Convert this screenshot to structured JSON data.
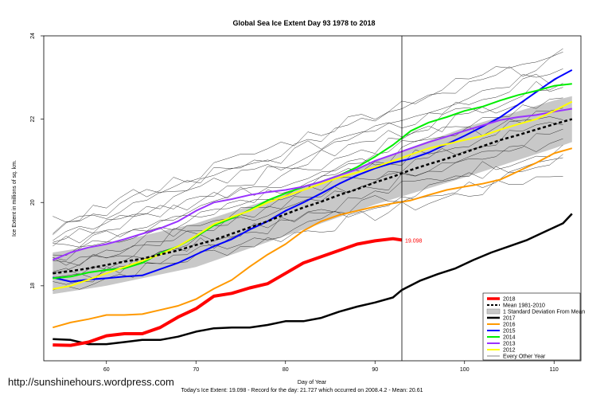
{
  "chart_data": {
    "type": "line",
    "title": "Global Sea Ice Extent Day 93 1978 to 2018",
    "xlabel": "Day of Year",
    "ylabel": "Ice Extent in millions of sq. km.",
    "xlim": [
      53,
      113
    ],
    "ylim": [
      16.2,
      24
    ],
    "x_ticks": [
      60,
      70,
      80,
      90,
      100,
      110
    ],
    "y_ticks": [
      18,
      20,
      22,
      24
    ],
    "current_day": 93,
    "grid": false,
    "legend_position": "bottom-right",
    "legend": [
      "2018",
      "Mean 1981-2010",
      "1 Standard Deviation From Mean",
      "2017",
      "2016",
      "2015",
      "2014",
      "2013",
      "2012",
      "Every Other Year"
    ],
    "annotation": "19.098",
    "series": [
      {
        "name": "2018",
        "color": "#ff0000",
        "x": [
          54,
          56,
          58,
          60,
          62,
          64,
          66,
          68,
          70,
          72,
          74,
          76,
          78,
          80,
          82,
          84,
          86,
          88,
          90,
          92,
          93
        ],
        "y": [
          16.58,
          16.57,
          16.65,
          16.8,
          16.85,
          16.85,
          17.0,
          17.25,
          17.45,
          17.75,
          17.82,
          17.95,
          18.05,
          18.3,
          18.55,
          18.7,
          18.85,
          19.0,
          19.08,
          19.13,
          19.098
        ]
      },
      {
        "name": "2017",
        "color": "#000000",
        "x": [
          54,
          56,
          58,
          60,
          62,
          64,
          66,
          68,
          70,
          72,
          74,
          76,
          78,
          80,
          82,
          84,
          86,
          88,
          90,
          92,
          93,
          95,
          97,
          99,
          101,
          103,
          105,
          107,
          109,
          111,
          112
        ],
        "y": [
          16.72,
          16.7,
          16.6,
          16.6,
          16.65,
          16.7,
          16.7,
          16.78,
          16.9,
          16.98,
          17.0,
          17.0,
          17.06,
          17.15,
          17.15,
          17.23,
          17.38,
          17.5,
          17.6,
          17.72,
          17.9,
          18.12,
          18.28,
          18.42,
          18.62,
          18.8,
          18.95,
          19.1,
          19.3,
          19.5,
          19.73
        ]
      },
      {
        "name": "2016",
        "color": "#ff9900",
        "x": [
          54,
          56,
          58,
          60,
          62,
          64,
          66,
          68,
          70,
          72,
          74,
          76,
          78,
          80,
          82,
          84,
          86,
          88,
          90,
          92,
          94,
          96,
          98,
          100,
          102,
          104,
          106,
          108,
          110,
          112
        ],
        "y": [
          17.0,
          17.12,
          17.2,
          17.3,
          17.3,
          17.32,
          17.42,
          17.52,
          17.68,
          17.93,
          18.14,
          18.46,
          18.75,
          19.0,
          19.32,
          19.55,
          19.7,
          19.8,
          19.9,
          19.98,
          20.05,
          20.18,
          20.3,
          20.38,
          20.45,
          20.55,
          20.75,
          20.95,
          21.18,
          21.3
        ]
      },
      {
        "name": "2015",
        "color": "#0000ff",
        "x": [
          54,
          56,
          58,
          60,
          62,
          64,
          66,
          68,
          70,
          72,
          74,
          76,
          78,
          80,
          82,
          84,
          86,
          88,
          90,
          92,
          94,
          96,
          98,
          100,
          102,
          104,
          106,
          108,
          110,
          112
        ],
        "y": [
          18.2,
          18.1,
          18.15,
          18.18,
          18.22,
          18.25,
          18.4,
          18.55,
          18.75,
          18.95,
          19.12,
          19.35,
          19.55,
          19.8,
          20.0,
          20.22,
          20.45,
          20.65,
          20.82,
          20.95,
          21.05,
          21.2,
          21.4,
          21.6,
          21.82,
          22.05,
          22.35,
          22.65,
          22.95,
          23.18
        ]
      },
      {
        "name": "2014",
        "color": "#00ee00",
        "x": [
          54,
          56,
          58,
          60,
          62,
          64,
          66,
          68,
          70,
          72,
          74,
          76,
          78,
          80,
          82,
          84,
          86,
          88,
          90,
          92,
          94,
          96,
          98,
          100,
          102,
          104,
          106,
          108,
          110,
          112
        ],
        "y": [
          18.18,
          18.22,
          18.32,
          18.38,
          18.42,
          18.55,
          18.78,
          18.95,
          19.18,
          19.45,
          19.62,
          19.82,
          20.05,
          20.22,
          20.38,
          20.5,
          20.65,
          20.85,
          21.1,
          21.38,
          21.72,
          21.92,
          22.05,
          22.2,
          22.3,
          22.45,
          22.58,
          22.68,
          22.8,
          22.85
        ]
      },
      {
        "name": "2013",
        "color": "#9933ff",
        "x": [
          54,
          56,
          58,
          60,
          62,
          64,
          66,
          68,
          70,
          72,
          74,
          76,
          78,
          80,
          82,
          84,
          86,
          88,
          90,
          92,
          94,
          96,
          98,
          100,
          102,
          104,
          106,
          108,
          110,
          112
        ],
        "y": [
          18.62,
          18.8,
          18.92,
          19.0,
          19.12,
          19.25,
          19.38,
          19.55,
          19.8,
          20.0,
          20.08,
          20.18,
          20.25,
          20.3,
          20.38,
          20.5,
          20.65,
          20.8,
          21.0,
          21.15,
          21.3,
          21.45,
          21.58,
          21.72,
          21.85,
          21.98,
          22.05,
          22.1,
          22.18,
          22.25
        ]
      },
      {
        "name": "2012",
        "color": "#ffff00",
        "x": [
          54,
          56,
          58,
          60,
          62,
          64,
          66,
          68,
          70,
          72,
          74,
          76,
          78,
          80,
          82,
          84,
          86,
          88,
          90,
          92,
          94,
          96,
          98,
          100,
          102,
          104,
          106,
          108,
          110,
          112
        ],
        "y": [
          17.92,
          18.0,
          18.15,
          18.3,
          18.45,
          18.6,
          18.75,
          18.95,
          19.2,
          19.48,
          19.65,
          19.8,
          20.0,
          20.15,
          20.3,
          20.45,
          20.6,
          20.72,
          20.85,
          21.0,
          21.15,
          21.3,
          21.4,
          21.5,
          21.6,
          21.75,
          21.88,
          22.0,
          22.2,
          22.42
        ]
      },
      {
        "name": "Mean 1981-2010",
        "color": "#000000",
        "x": [
          54,
          56,
          58,
          60,
          62,
          64,
          66,
          68,
          70,
          72,
          74,
          76,
          78,
          80,
          82,
          84,
          86,
          88,
          90,
          92,
          94,
          96,
          98,
          100,
          102,
          104,
          106,
          108,
          110,
          112
        ],
        "y": [
          18.3,
          18.35,
          18.42,
          18.5,
          18.58,
          18.65,
          18.75,
          18.85,
          18.98,
          19.1,
          19.25,
          19.4,
          19.55,
          19.72,
          19.88,
          20.02,
          20.18,
          20.32,
          20.48,
          20.62,
          20.78,
          20.92,
          21.05,
          21.2,
          21.35,
          21.5,
          21.62,
          21.75,
          21.88,
          22.0
        ]
      }
    ],
    "std_band": {
      "x": [
        54,
        60,
        70,
        80,
        90,
        100,
        110,
        112
      ],
      "lower": [
        17.8,
        18.0,
        18.45,
        19.2,
        19.95,
        20.6,
        21.3,
        21.45
      ],
      "upper": [
        18.8,
        19.0,
        19.5,
        20.2,
        21.0,
        21.8,
        22.45,
        22.55
      ]
    }
  },
  "watermark": "http://sunshinehours.wordpress.com",
  "footer": "Today's Ice Extent: 19.098  - Record for the day: 21.727 which occurred on 2008.4.2  - Mean: 20.61"
}
